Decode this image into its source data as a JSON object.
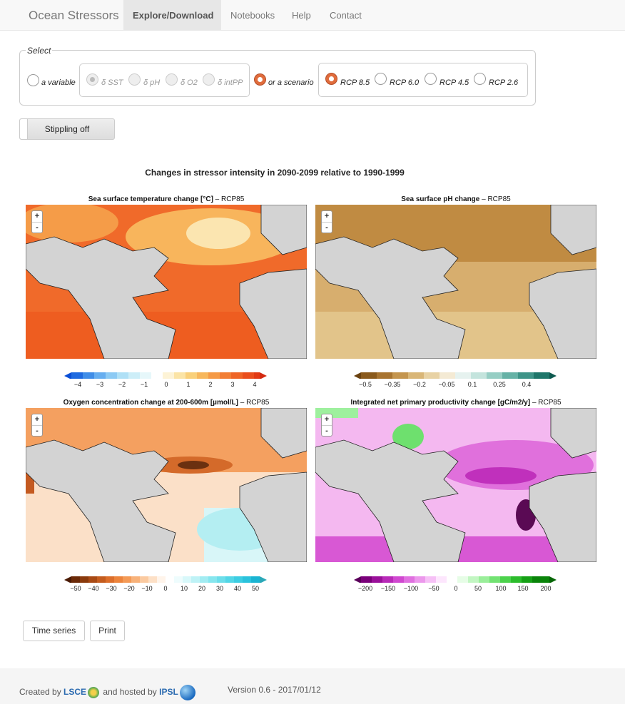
{
  "nav": {
    "brand": "Ocean Stressors",
    "items": [
      "Explore/Download",
      "Notebooks",
      "Help",
      "Contact"
    ],
    "active": "Explore/Download"
  },
  "select": {
    "legend": "Select",
    "variable_label": "a variable",
    "variables": [
      "δ SST",
      "δ pH",
      "δ O2",
      "δ intPP"
    ],
    "scenario_label": "or a scenario",
    "scenarios": [
      "RCP 8.5",
      "RCP 6.0",
      "RCP 4.5",
      "RCP 2.6"
    ],
    "selected_scenario": "RCP 8.5"
  },
  "stippling_label": "Stippling off",
  "main_title": "Changes in stressor intensity in 2090-2099 relative to 1990-1999",
  "maps": [
    {
      "title_bold": "Sea surface temperature change [°C]",
      "title_suffix": " – RCP85",
      "ticks": [
        "−4",
        "−3",
        "−2",
        "−1",
        "0",
        "1",
        "2",
        "3",
        "4"
      ]
    },
    {
      "title_bold": "Sea surface pH change",
      "title_suffix": " – RCP85",
      "ticks": [
        "−0.5",
        "−0.35",
        "−0.2",
        "−0.05",
        "0.1",
        "0.25",
        "0.4"
      ]
    },
    {
      "title_bold": "Oxygen concentration change at 200-600m [µmol/L]",
      "title_suffix": " – RCP85",
      "ticks": [
        "−50",
        "−40",
        "−30",
        "−20",
        "−10",
        "0",
        "10",
        "20",
        "30",
        "40",
        "50"
      ]
    },
    {
      "title_bold": "Integrated net primary productivity change [gC/m2/y]",
      "title_suffix": " – RCP85",
      "ticks": [
        "−200",
        "−150",
        "−100",
        "−50",
        "0",
        "50",
        "100",
        "150",
        "200"
      ]
    }
  ],
  "zoom": {
    "plus": "+",
    "minus": "-"
  },
  "buttons": {
    "time_series": "Time series",
    "print": "Print"
  },
  "footer": {
    "created_by": "Created by",
    "lsce": "LSCE",
    "hosted_by": "and hosted by",
    "ipsl": "IPSL",
    "version": "Version 0.6 - 2017/01/12"
  }
}
